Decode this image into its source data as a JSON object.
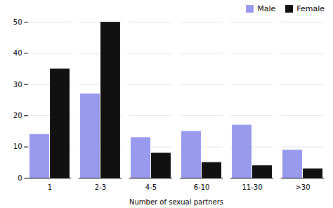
{
  "chart_data": {
    "type": "bar",
    "xlabel": "Number of sexual partners",
    "categories": [
      "1",
      "2-3",
      "4-5",
      "6-10",
      "11-30",
      ">30"
    ],
    "series": [
      {
        "name": "Male",
        "color": "#9999ee",
        "values": [
          14,
          27,
          13,
          15,
          17,
          9
        ]
      },
      {
        "name": "Female",
        "color": "#111111",
        "values": [
          35,
          50,
          8,
          5,
          4,
          3
        ]
      }
    ],
    "ylim": [
      0,
      50
    ],
    "yticks": [
      0,
      10,
      20,
      30,
      40,
      50
    ],
    "grid": true,
    "legend": "upper right"
  }
}
